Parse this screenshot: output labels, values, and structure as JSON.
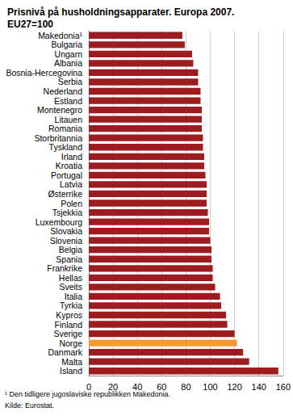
{
  "chart_data": {
    "type": "bar",
    "orientation": "horizontal",
    "title": "Prisnivå på husholdningsapparater. Europa 2007. EU27=100",
    "categories": [
      "Makedonia¹",
      "Bulgaria",
      "Ungarn",
      "Albania",
      "Bosnia-Hercegovina",
      "Serbia",
      "Nederland",
      "Estland",
      "Montenegro",
      "Litauen",
      "Romania",
      "Storbritannia",
      "Tyskland",
      "Irland",
      "Kroatia",
      "Portugal",
      "Latvia",
      "Østerrike",
      "Polen",
      "Tsjekkia",
      "Luxembourg",
      "Slovakia",
      "Slovenia",
      "Belgia",
      "Spania",
      "Frankrike",
      "Hellas",
      "Sveits",
      "Italia",
      "Tyrkia",
      "Kypros",
      "Finland",
      "Sverige",
      "Norge",
      "Danmark",
      "Malta",
      "Island"
    ],
    "values": [
      77,
      79,
      85,
      86,
      90,
      90,
      92,
      92,
      93,
      93,
      93,
      94,
      94,
      95,
      95,
      96,
      97,
      97,
      97,
      98,
      99,
      99,
      100,
      101,
      101,
      102,
      102,
      104,
      108,
      109,
      113,
      114,
      120,
      122,
      127,
      132,
      156
    ],
    "colors": [
      "#9c1c1f",
      "#9c1c1f",
      "#9c1c1f",
      "#9c1c1f",
      "#9c1c1f",
      "#9c1c1f",
      "#9c1c1f",
      "#9c1c1f",
      "#9c1c1f",
      "#9c1c1f",
      "#9c1c1f",
      "#9c1c1f",
      "#9c1c1f",
      "#9c1c1f",
      "#9c1c1f",
      "#9c1c1f",
      "#9c1c1f",
      "#9c1c1f",
      "#9c1c1f",
      "#9c1c1f",
      "#9c1c1f",
      "#9c1c1f",
      "#9c1c1f",
      "#9c1c1f",
      "#9c1c1f",
      "#9c1c1f",
      "#9c1c1f",
      "#9c1c1f",
      "#9c1c1f",
      "#9c1c1f",
      "#9c1c1f",
      "#9c1c1f",
      "#9c1c1f",
      "#f39a34",
      "#9c1c1f",
      "#9c1c1f",
      "#9c1c1f"
    ],
    "xlim": [
      0,
      160
    ],
    "xticks": [
      0,
      20,
      40,
      60,
      80,
      100,
      120,
      140,
      160
    ],
    "grid": true,
    "footnote": "¹ Den tidligere jugoslaviske republikken Makedonia.",
    "source": "Kilde: Eurostat."
  }
}
